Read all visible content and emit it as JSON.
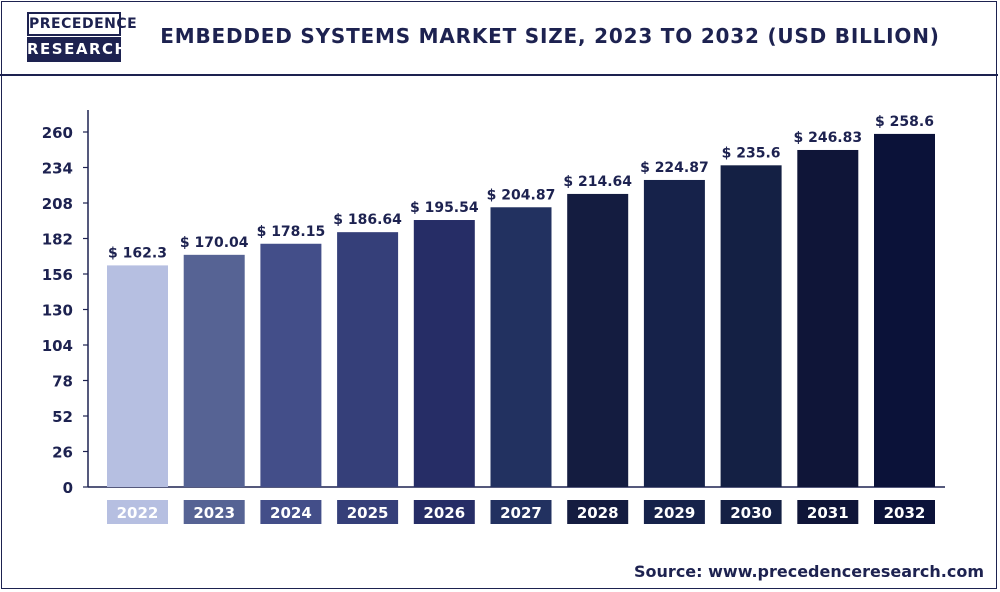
{
  "brand": {
    "logo_top": "PRECEDENCE",
    "logo_bottom": "RESEARCH"
  },
  "title": "EMBEDDED SYSTEMS MARKET SIZE, 2023 TO 2032 (USD BILLION)",
  "source": {
    "label": "Source:",
    "url": "www.precedenceresearch.com"
  },
  "chart_data": {
    "type": "bar",
    "categories": [
      "2022",
      "2023",
      "2024",
      "2025",
      "2026",
      "2027",
      "2028",
      "2029",
      "2030",
      "2031",
      "2032"
    ],
    "values": [
      162.3,
      170.04,
      178.15,
      186.64,
      195.54,
      204.87,
      214.64,
      224.87,
      235.6,
      246.83,
      258.6
    ],
    "data_labels": [
      "$ 162.3",
      "$ 170.04",
      "$ 178.15",
      "$ 186.64",
      "$ 195.54",
      "$ 204.87",
      "$ 214.64",
      "$ 224.87",
      "$ 235.6",
      "$ 246.83",
      "$ 258.6"
    ],
    "yticks": [
      0,
      26,
      52,
      78,
      104,
      130,
      156,
      182,
      208,
      234,
      260
    ],
    "ylim": [
      0,
      260
    ],
    "colors": [
      "#b6bfe1",
      "#566394",
      "#434e89",
      "#353f79",
      "#262d66",
      "#223160",
      "#141c40",
      "#16224a",
      "#142044",
      "#0f1538",
      "#0b1239"
    ],
    "grid": false,
    "legend": "none"
  }
}
